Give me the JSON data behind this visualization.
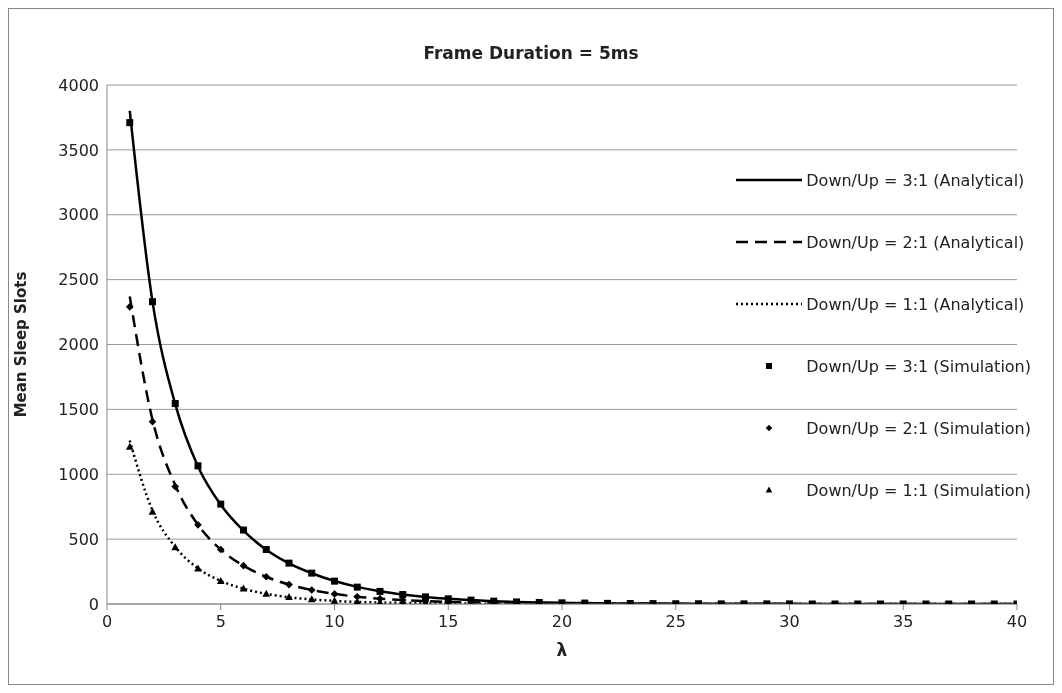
{
  "chart_data": {
    "type": "line",
    "title": "Frame Duration = 5ms",
    "xlabel": "λ",
    "ylabel": "Mean Sleep Slots",
    "x": [
      1,
      2,
      3,
      4,
      5,
      6,
      7,
      8,
      9,
      10,
      11,
      12,
      13,
      14,
      15,
      16,
      17,
      18,
      19,
      20,
      21,
      22,
      23,
      24,
      25,
      26,
      27,
      28,
      29,
      30,
      31,
      32,
      33,
      34,
      35,
      36,
      37,
      38,
      39,
      40
    ],
    "series": [
      {
        "name": "Down/Up = 3:1 (Analytical)",
        "line_style": "solid",
        "marker": "none",
        "color": "#000000",
        "values": [
          3800,
          2330,
          1540,
          1060,
          765,
          565,
          418,
          313,
          237,
          177,
          132,
          98,
          73,
          54,
          40,
          30,
          22,
          16,
          12,
          9,
          7,
          5,
          4,
          3,
          2,
          2,
          1,
          1,
          1,
          1,
          0,
          0,
          0,
          0,
          0,
          0,
          0,
          0,
          0,
          0
        ]
      },
      {
        "name": "Down/Up = 2:1 (Analytical)",
        "line_style": "dashed",
        "marker": "none",
        "color": "#000000",
        "values": [
          2370,
          1420,
          915,
          610,
          420,
          295,
          210,
          150,
          108,
          78,
          56,
          41,
          30,
          22,
          16,
          12,
          9,
          6,
          5,
          3,
          2,
          2,
          1,
          1,
          1,
          0,
          0,
          0,
          0,
          0,
          0,
          0,
          0,
          0,
          0,
          0,
          0,
          0,
          0,
          0
        ]
      },
      {
        "name": "Down/Up = 1:1 (Analytical)",
        "line_style": "dotted",
        "marker": "none",
        "color": "#000000",
        "values": [
          1260,
          720,
          440,
          275,
          178,
          118,
          78,
          52,
          35,
          24,
          16,
          11,
          8,
          5,
          4,
          3,
          2,
          1,
          1,
          1,
          0,
          0,
          0,
          0,
          0,
          0,
          0,
          0,
          0,
          0,
          0,
          0,
          0,
          0,
          0,
          0,
          0,
          0,
          0,
          0
        ]
      },
      {
        "name": "Down/Up = 3:1 (Simulation)",
        "type": "scatter",
        "marker": "square",
        "color": "#000000",
        "values": [
          3710,
          2330,
          1545,
          1065,
          770,
          570,
          420,
          315,
          238,
          176,
          130,
          97,
          73,
          55,
          40,
          30,
          22,
          16,
          12,
          9,
          7,
          5,
          4,
          3,
          2,
          2,
          1,
          1,
          1,
          1,
          0,
          0,
          0,
          0,
          0,
          0,
          0,
          0,
          0,
          0
        ]
      },
      {
        "name": "Down/Up = 2:1 (Simulation)",
        "type": "scatter",
        "marker": "diamond",
        "color": "#000000",
        "values": [
          2290,
          1405,
          905,
          610,
          420,
          295,
          210,
          150,
          108,
          78,
          56,
          41,
          30,
          22,
          16,
          null,
          null,
          null,
          null,
          null,
          null,
          null,
          null,
          null,
          null,
          null,
          null,
          null,
          null,
          null,
          null,
          null,
          null,
          null,
          null,
          null,
          null,
          null,
          null,
          null
        ]
      },
      {
        "name": "Down/Up = 1:1 (Simulation)",
        "type": "scatter",
        "marker": "triangle",
        "color": "#000000",
        "values": [
          1210,
          710,
          435,
          272,
          175,
          118,
          78,
          52,
          35,
          24,
          16,
          11,
          8,
          5,
          4,
          null,
          null,
          null,
          null,
          null,
          null,
          null,
          null,
          null,
          null,
          null,
          null,
          null,
          null,
          null,
          null,
          null,
          null,
          null,
          null,
          null,
          null,
          null,
          null,
          null
        ]
      }
    ],
    "xlim": [
      0,
      40
    ],
    "xticks": [
      0,
      5,
      10,
      15,
      20,
      25,
      30,
      35,
      40
    ],
    "ylim": [
      0,
      4000
    ],
    "yticks": [
      0,
      500,
      1000,
      1500,
      2000,
      2500,
      3000,
      3500,
      4000
    ],
    "grid": "y",
    "legend": "top right"
  }
}
